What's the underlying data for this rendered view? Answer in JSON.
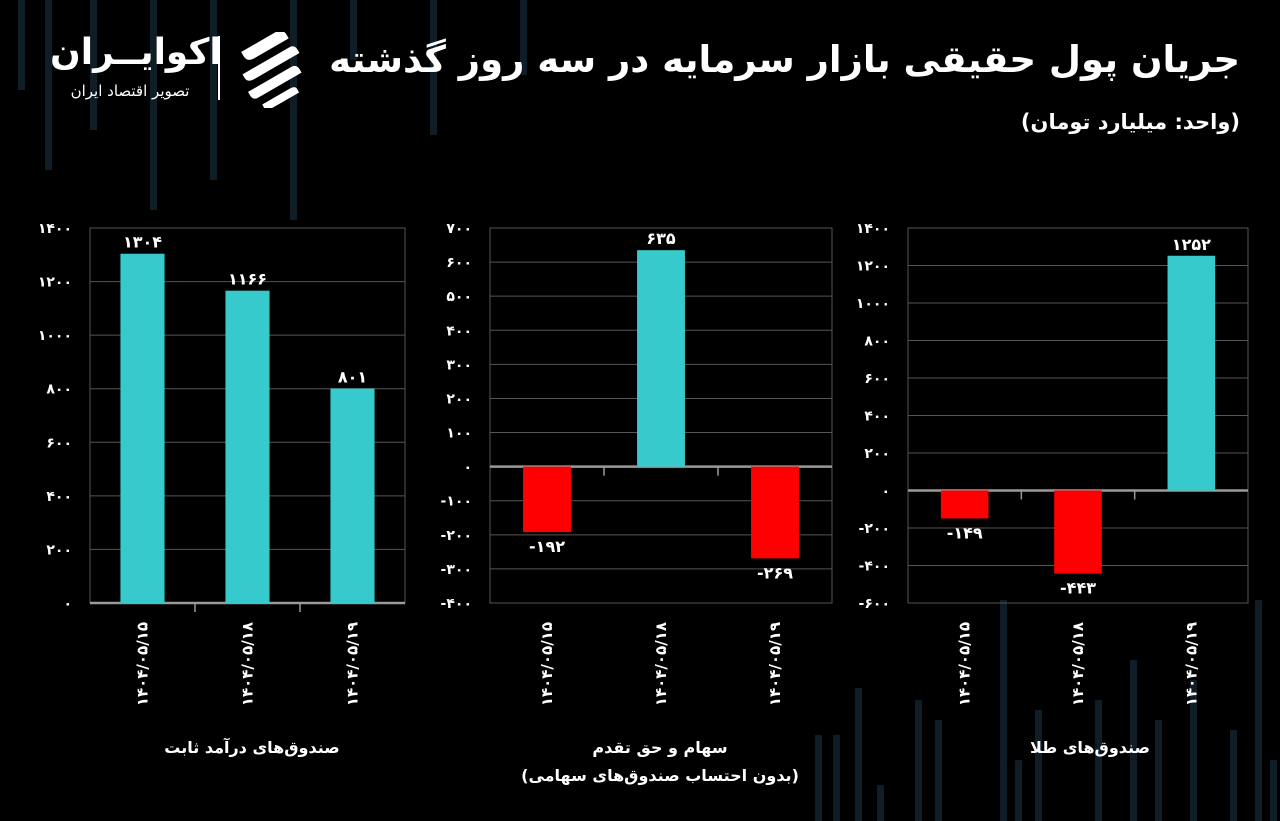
{
  "header": {
    "title": "جریان پول حقیقی بازار سرمایه در سه روز گذشته",
    "unit": "(واحد: میلیارد تومان)"
  },
  "logo": {
    "name": "اکوایــران",
    "tagline": "تصویر اقتصاد ایران"
  },
  "colors": {
    "background": "#000000",
    "positive": "#36cacc",
    "negative": "#ff0000",
    "grid": "#555555",
    "decoration": "#0f1d27"
  },
  "chart_data": [
    {
      "type": "bar",
      "categories": [
        "۱۴۰۴/۰۵/۱۵",
        "۱۴۰۴/۰۵/۱۸",
        "۱۴۰۴/۰۵/۱۹"
      ],
      "values": [
        1304,
        1166,
        801
      ],
      "data_labels": [
        "۱۳۰۴",
        "۱۱۶۶",
        "۸۰۱"
      ],
      "ylim": [
        0,
        1400
      ],
      "y_ticks": [
        0,
        200,
        400,
        600,
        800,
        1000,
        1200,
        1400
      ],
      "y_tick_labels": [
        "۰",
        "۲۰۰",
        "۴۰۰",
        "۶۰۰",
        "۸۰۰",
        "۱۰۰۰",
        "۱۲۰۰",
        "۱۴۰۰"
      ],
      "xlabel": "صندوق‌های درآمد ثابت",
      "xlabel2": "",
      "grid": true
    },
    {
      "type": "bar",
      "categories": [
        "۱۴۰۴/۰۵/۱۵",
        "۱۴۰۴/۰۵/۱۸",
        "۱۴۰۴/۰۵/۱۹"
      ],
      "values": [
        -192,
        635,
        -269
      ],
      "data_labels": [
        "-۱۹۲",
        "۶۳۵",
        "-۲۶۹"
      ],
      "ylim": [
        -400,
        700
      ],
      "y_ticks": [
        -400,
        -300,
        -200,
        -100,
        0,
        100,
        200,
        300,
        400,
        500,
        600,
        700
      ],
      "y_tick_labels": [
        "-۴۰۰",
        "-۳۰۰",
        "-۲۰۰",
        "-۱۰۰",
        "۰",
        "۱۰۰",
        "۲۰۰",
        "۳۰۰",
        "۴۰۰",
        "۵۰۰",
        "۶۰۰",
        "۷۰۰"
      ],
      "xlabel": "سهام و حق تقدم",
      "xlabel2": "(بدون احتساب صندوق‌های سهامی)",
      "grid": true
    },
    {
      "type": "bar",
      "categories": [
        "۱۴۰۴/۰۵/۱۵",
        "۱۴۰۴/۰۵/۱۸",
        "۱۴۰۴/۰۵/۱۹"
      ],
      "values": [
        -149,
        -443,
        1252
      ],
      "data_labels": [
        "-۱۴۹",
        "-۴۴۳",
        "۱۲۵۲"
      ],
      "ylim": [
        -600,
        1400
      ],
      "y_ticks": [
        -600,
        -400,
        -200,
        0,
        200,
        400,
        600,
        800,
        1000,
        1200,
        1400
      ],
      "y_tick_labels": [
        "-۶۰۰",
        "-۴۰۰",
        "-۲۰۰",
        "۰",
        "۲۰۰",
        "۴۰۰",
        "۶۰۰",
        "۸۰۰",
        "۱۰۰۰",
        "۱۲۰۰",
        "۱۴۰۰"
      ],
      "xlabel": "صندوق‌های طلا",
      "xlabel2": "",
      "grid": true
    }
  ]
}
